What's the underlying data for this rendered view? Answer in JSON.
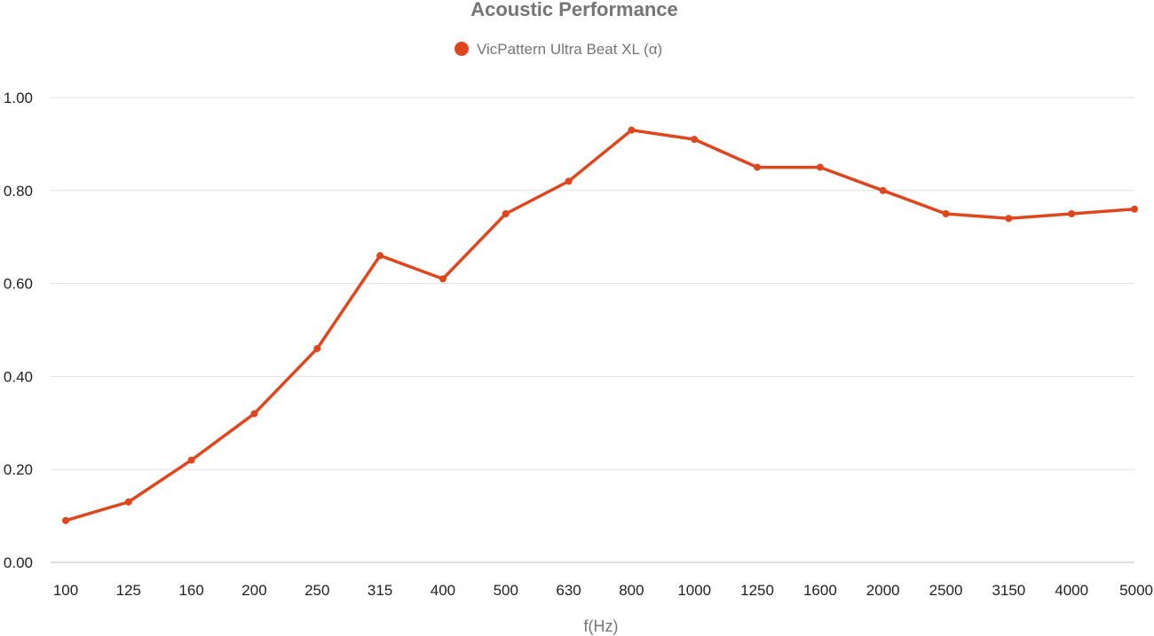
{
  "chart_data": {
    "type": "line",
    "title": "Acoustic Performance",
    "xlabel": "f(Hz)",
    "ylabel": "",
    "categories": [
      "100",
      "125",
      "160",
      "200",
      "250",
      "315",
      "400",
      "500",
      "630",
      "800",
      "1000",
      "1250",
      "1600",
      "2000",
      "2500",
      "3150",
      "4000",
      "5000"
    ],
    "series": [
      {
        "name": "VicPattern Ultra Beat XL (α)",
        "color": "#e0461e",
        "values": [
          0.09,
          0.13,
          0.22,
          0.32,
          0.46,
          0.66,
          0.61,
          0.75,
          0.82,
          0.93,
          0.91,
          0.85,
          0.85,
          0.8,
          0.75,
          0.74,
          0.75,
          0.76
        ]
      }
    ],
    "ylim": [
      0,
      1
    ],
    "yticks": [
      "0.00",
      "0.20",
      "0.40",
      "0.60",
      "0.80",
      "1.00"
    ],
    "ytick_values": [
      0,
      0.2,
      0.4,
      0.6,
      0.8,
      1.0
    ],
    "grid": true,
    "legend_position": "top-center"
  }
}
